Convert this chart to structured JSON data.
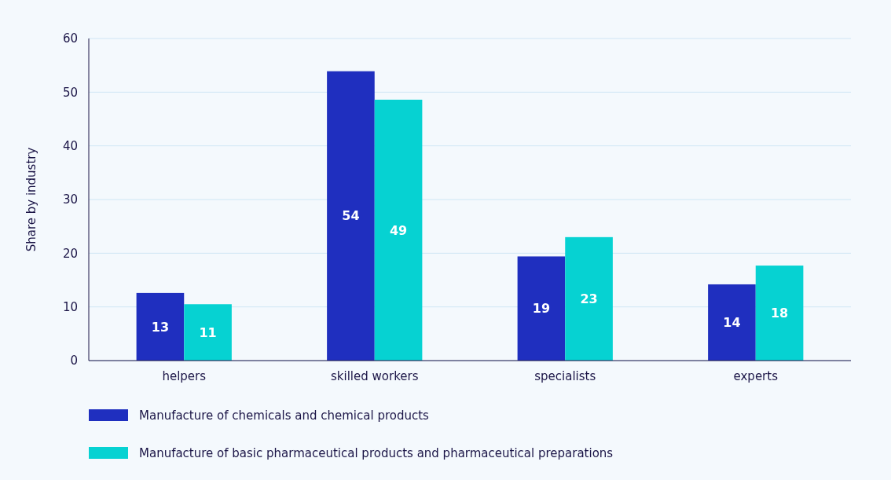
{
  "chart_data": {
    "type": "bar",
    "ylabel": "Share by industry",
    "categories": [
      "helpers",
      "skilled workers",
      "specialists",
      "experts"
    ],
    "series": [
      {
        "name": "Manufacture of chemicals and chemical products",
        "color": "#1f2fbf",
        "values": [
          12.6,
          53.9,
          19.4,
          14.2
        ],
        "value_labels": [
          "13",
          "54",
          "19",
          "14"
        ]
      },
      {
        "name": "Manufacture of basic pharmaceutical products and pharmaceutical preparations",
        "color": "#06d2d2",
        "values": [
          10.5,
          48.6,
          23.0,
          17.7
        ],
        "value_labels": [
          "11",
          "49",
          "23",
          "18"
        ]
      }
    ],
    "ylim": [
      0,
      60
    ],
    "yticks": [
      0,
      10,
      20,
      30,
      40,
      50,
      60
    ],
    "grid": "y",
    "legend": "bottom"
  }
}
